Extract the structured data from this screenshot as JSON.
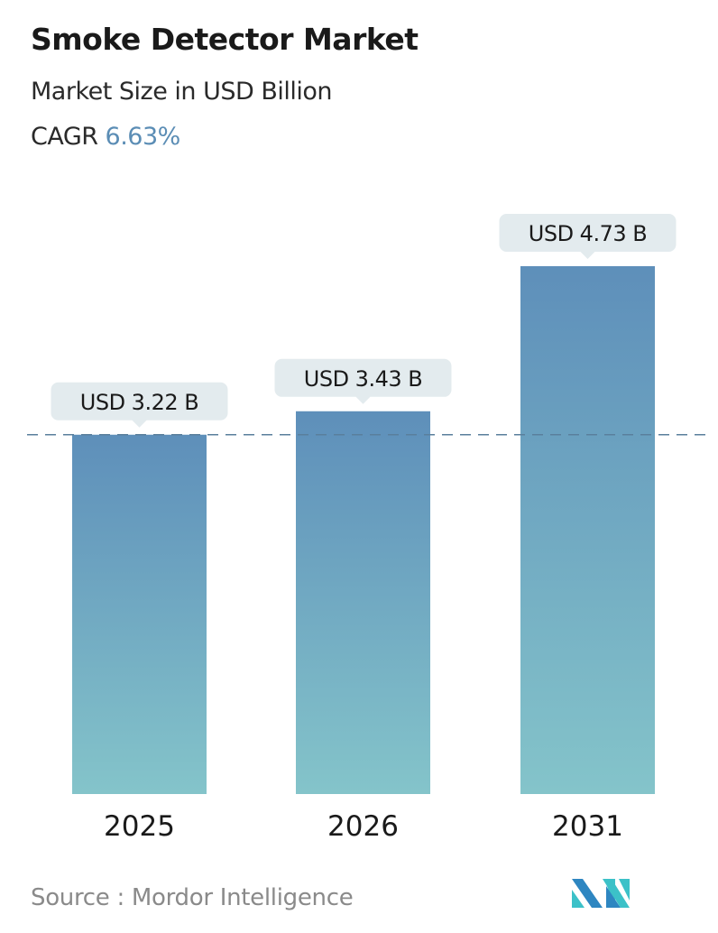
{
  "header": {
    "title": "Smoke Detector Market",
    "subtitle": "Market Size in USD Billion",
    "cagr_label": "CAGR",
    "cagr_value": "6.63%"
  },
  "chart_data": {
    "type": "bar",
    "title": "Smoke Detector Market",
    "categories": [
      "2025",
      "2026",
      "2031"
    ],
    "values": [
      3.22,
      3.43,
      4.73
    ],
    "data_labels": [
      "USD 3.22 B",
      "USD 3.43 B",
      "USD 4.73 B"
    ],
    "ylabel": "Market Size in USD Billion",
    "ylim": [
      0,
      4.73
    ],
    "reference_line": 3.22,
    "grid": false,
    "colors": {
      "bar_top": "#5e8fba",
      "bar_bottom": "#84c4ca",
      "label_bg": "#e3ebee",
      "cagr": "#5b8db5",
      "ref_line": "#5a7f9c"
    }
  },
  "footer": {
    "source": "Source :  Mordor Intelligence",
    "logo": "MI"
  }
}
